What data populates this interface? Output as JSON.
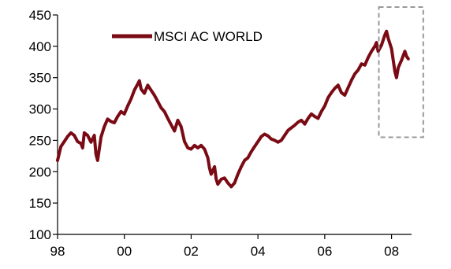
{
  "chart_data": {
    "type": "line",
    "title": "",
    "xlabel": "",
    "ylabel": "",
    "xlim": [
      1998,
      2008.6
    ],
    "ylim": [
      100,
      450
    ],
    "x_ticks": [
      1998,
      2000,
      2002,
      2004,
      2006,
      2008
    ],
    "x_tick_labels": [
      "98",
      "00",
      "02",
      "04",
      "06",
      "08"
    ],
    "y_ticks": [
      100,
      150,
      200,
      250,
      300,
      350,
      400,
      450
    ],
    "y_tick_labels": [
      "100",
      "150",
      "200",
      "250",
      "300",
      "350",
      "400",
      "450"
    ],
    "grid": false,
    "legend": {
      "position": "top-left",
      "entries": [
        "MSCI AC WORLD"
      ]
    },
    "series": [
      {
        "name": "MSCI AC WORLD",
        "color": "#7a0a14",
        "points": [
          [
            1998.0,
            218
          ],
          [
            1998.1,
            240
          ],
          [
            1998.2,
            248
          ],
          [
            1998.3,
            256
          ],
          [
            1998.4,
            262
          ],
          [
            1998.5,
            258
          ],
          [
            1998.6,
            248
          ],
          [
            1998.7,
            245
          ],
          [
            1998.75,
            238
          ],
          [
            1998.8,
            262
          ],
          [
            1998.9,
            258
          ],
          [
            1999.0,
            247
          ],
          [
            1999.1,
            258
          ],
          [
            1999.15,
            228
          ],
          [
            1999.2,
            218
          ],
          [
            1999.3,
            255
          ],
          [
            1999.4,
            272
          ],
          [
            1999.5,
            284
          ],
          [
            1999.6,
            280
          ],
          [
            1999.7,
            278
          ],
          [
            1999.8,
            288
          ],
          [
            1999.9,
            296
          ],
          [
            2000.0,
            292
          ],
          [
            2000.1,
            305
          ],
          [
            2000.2,
            316
          ],
          [
            2000.3,
            330
          ],
          [
            2000.4,
            340
          ],
          [
            2000.45,
            345
          ],
          [
            2000.5,
            332
          ],
          [
            2000.6,
            325
          ],
          [
            2000.7,
            338
          ],
          [
            2000.8,
            330
          ],
          [
            2000.9,
            322
          ],
          [
            2001.0,
            312
          ],
          [
            2001.1,
            302
          ],
          [
            2001.2,
            296
          ],
          [
            2001.3,
            285
          ],
          [
            2001.4,
            275
          ],
          [
            2001.5,
            265
          ],
          [
            2001.6,
            282
          ],
          [
            2001.7,
            272
          ],
          [
            2001.8,
            248
          ],
          [
            2001.9,
            238
          ],
          [
            2002.0,
            236
          ],
          [
            2002.1,
            242
          ],
          [
            2002.2,
            238
          ],
          [
            2002.3,
            242
          ],
          [
            2002.4,
            236
          ],
          [
            2002.5,
            222
          ],
          [
            2002.55,
            206
          ],
          [
            2002.6,
            196
          ],
          [
            2002.7,
            208
          ],
          [
            2002.75,
            188
          ],
          [
            2002.8,
            180
          ],
          [
            2002.9,
            188
          ],
          [
            2003.0,
            190
          ],
          [
            2003.1,
            182
          ],
          [
            2003.2,
            176
          ],
          [
            2003.3,
            182
          ],
          [
            2003.4,
            196
          ],
          [
            2003.5,
            208
          ],
          [
            2003.6,
            218
          ],
          [
            2003.7,
            222
          ],
          [
            2003.8,
            232
          ],
          [
            2003.9,
            240
          ],
          [
            2004.0,
            248
          ],
          [
            2004.1,
            256
          ],
          [
            2004.2,
            260
          ],
          [
            2004.3,
            257
          ],
          [
            2004.4,
            252
          ],
          [
            2004.5,
            250
          ],
          [
            2004.6,
            247
          ],
          [
            2004.7,
            250
          ],
          [
            2004.8,
            258
          ],
          [
            2004.9,
            266
          ],
          [
            2005.0,
            270
          ],
          [
            2005.1,
            274
          ],
          [
            2005.2,
            279
          ],
          [
            2005.3,
            282
          ],
          [
            2005.4,
            276
          ],
          [
            2005.5,
            285
          ],
          [
            2005.6,
            292
          ],
          [
            2005.7,
            288
          ],
          [
            2005.8,
            285
          ],
          [
            2005.9,
            296
          ],
          [
            2006.0,
            305
          ],
          [
            2006.1,
            318
          ],
          [
            2006.2,
            326
          ],
          [
            2006.3,
            333
          ],
          [
            2006.4,
            338
          ],
          [
            2006.5,
            326
          ],
          [
            2006.6,
            322
          ],
          [
            2006.7,
            334
          ],
          [
            2006.8,
            346
          ],
          [
            2006.9,
            356
          ],
          [
            2007.0,
            362
          ],
          [
            2007.1,
            372
          ],
          [
            2007.2,
            370
          ],
          [
            2007.3,
            382
          ],
          [
            2007.4,
            392
          ],
          [
            2007.5,
            400
          ],
          [
            2007.55,
            406
          ],
          [
            2007.6,
            392
          ],
          [
            2007.7,
            402
          ],
          [
            2007.8,
            418
          ],
          [
            2007.85,
            424
          ],
          [
            2007.9,
            413
          ],
          [
            2008.0,
            396
          ],
          [
            2008.1,
            360
          ],
          [
            2008.15,
            350
          ],
          [
            2008.2,
            366
          ],
          [
            2008.3,
            378
          ],
          [
            2008.4,
            392
          ],
          [
            2008.45,
            384
          ],
          [
            2008.5,
            380
          ]
        ]
      }
    ],
    "annotations": [
      {
        "type": "dashed-box",
        "x_range": [
          2007.62,
          2008.95
        ],
        "y_range": [
          255,
          450
        ]
      }
    ]
  }
}
